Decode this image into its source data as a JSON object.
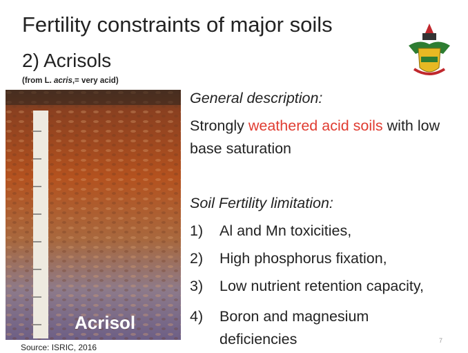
{
  "title": "Fertility constraints of major soils",
  "subtitle": "2) Acrisols",
  "etymology": {
    "prefix": "(from L. ",
    "italic": "acris",
    "suffix": ",= very acid)"
  },
  "photo": {
    "label": "Acrisol",
    "source": "Source: ISRIC, 2016"
  },
  "description": {
    "heading": "General description:",
    "parts": [
      "Strongly ",
      "weathered acid soils",
      " with low base saturation"
    ]
  },
  "limitations": {
    "heading": "Soil Fertility limitation:",
    "items": [
      {
        "number": "1)",
        "text": "Al and Mn toxicities,"
      },
      {
        "number": "2)",
        "text": "High phosphorus fixation,"
      },
      {
        "number": "3)",
        "text": "Low nutrient retention capacity,"
      },
      {
        "number": "4)",
        "text": "Boron and magnesium deficiencies"
      }
    ]
  },
  "page_number": "7"
}
